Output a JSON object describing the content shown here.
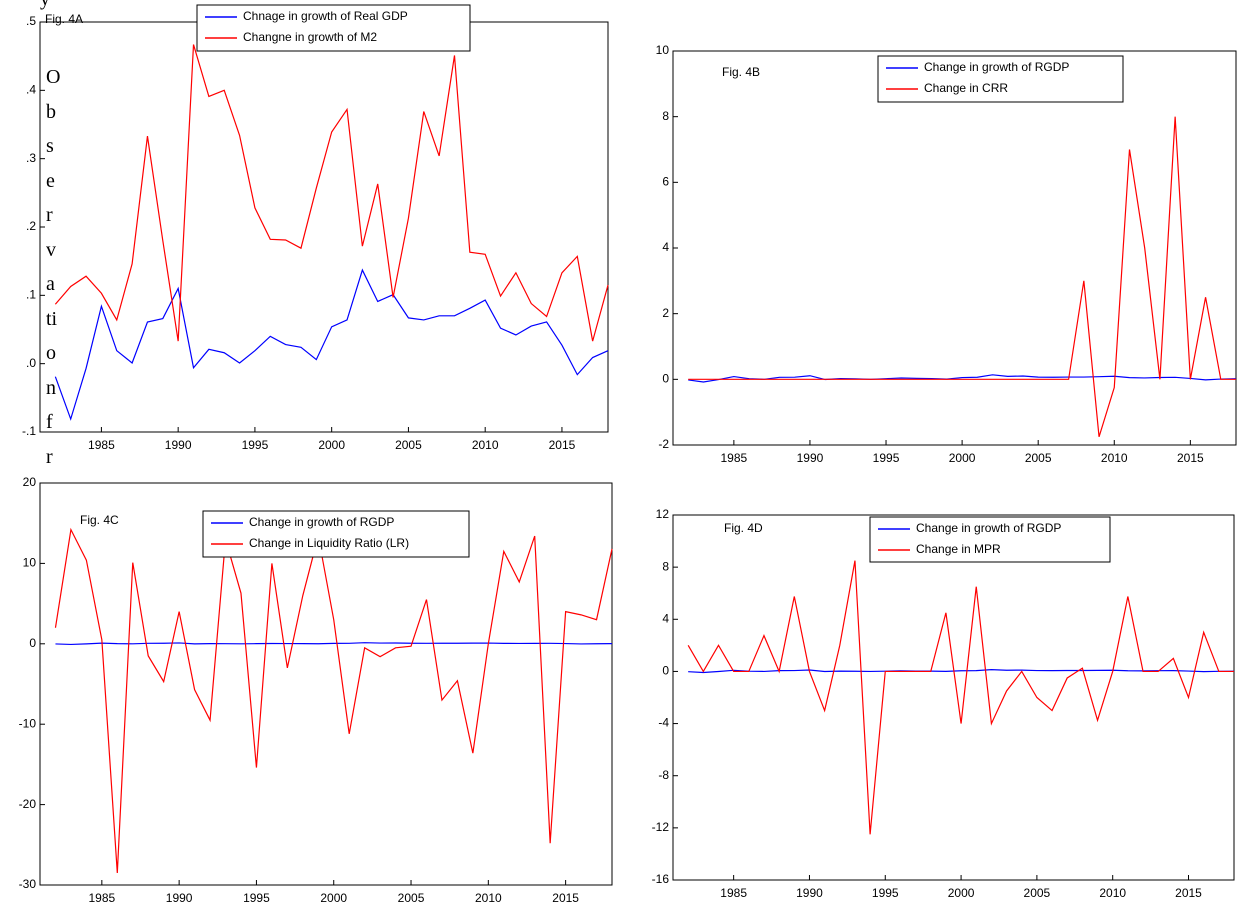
{
  "top_fragment": "y",
  "margin_text": "Observation fr",
  "chart_data": [
    {
      "type": "line",
      "annotation": "Fig. 4A",
      "x": [
        1982,
        1983,
        1984,
        1985,
        1986,
        1987,
        1988,
        1989,
        1990,
        1991,
        1992,
        1993,
        1994,
        1995,
        1996,
        1997,
        1998,
        1999,
        2000,
        2001,
        2002,
        2003,
        2004,
        2005,
        2006,
        2007,
        2008,
        2009,
        2010,
        2011,
        2012,
        2013,
        2014,
        2015,
        2016,
        2017,
        2018
      ],
      "series": [
        {
          "name": "Chnage in growth of Real GDP",
          "color": "#0000ff",
          "values": [
            -0.019,
            -0.081,
            -0.007,
            0.084,
            0.019,
            0.001,
            0.061,
            0.066,
            0.11,
            -0.006,
            0.021,
            0.016,
            0.001,
            0.019,
            0.04,
            0.028,
            0.024,
            0.006,
            0.054,
            0.064,
            0.137,
            0.091,
            0.101,
            0.067,
            0.064,
            0.07,
            0.07,
            0.081,
            0.093,
            0.052,
            0.042,
            0.055,
            0.061,
            0.027,
            -0.016,
            0.009,
            0.019
          ]
        },
        {
          "name": "Changne in growth of M2",
          "color": "#ff0000",
          "values": [
            0.087,
            0.113,
            0.128,
            0.103,
            0.064,
            0.146,
            0.333,
            0.18,
            0.033,
            0.467,
            0.391,
            0.4,
            0.334,
            0.228,
            0.182,
            0.181,
            0.169,
            0.257,
            0.339,
            0.372,
            0.172,
            0.263,
            0.097,
            0.213,
            0.369,
            0.304,
            0.451,
            0.163,
            0.16,
            0.099,
            0.133,
            0.088,
            0.069,
            0.133,
            0.157,
            0.033,
            0.115
          ]
        }
      ],
      "xlim": [
        1981,
        2018
      ],
      "ylim": [
        -0.1,
        0.5
      ],
      "xticks": [
        1985,
        1990,
        1995,
        2000,
        2005,
        2010,
        2015
      ],
      "yticks": [
        {
          "value": -0.1,
          "label": "-.1"
        },
        {
          "value": 0,
          "label": ".0"
        },
        {
          "value": 0.1,
          "label": ".1"
        },
        {
          "value": 0.2,
          "label": ".2"
        },
        {
          "value": 0.3,
          "label": ".3"
        },
        {
          "value": 0.4,
          "label": ".4"
        },
        {
          "value": 0.5,
          "label": ".5"
        }
      ]
    },
    {
      "type": "line",
      "annotation": "Fig. 4B",
      "x": [
        1982,
        1983,
        1984,
        1985,
        1986,
        1987,
        1988,
        1989,
        1990,
        1991,
        1992,
        1993,
        1994,
        1995,
        1996,
        1997,
        1998,
        1999,
        2000,
        2001,
        2002,
        2003,
        2004,
        2005,
        2006,
        2007,
        2008,
        2009,
        2010,
        2011,
        2012,
        2013,
        2014,
        2015,
        2016,
        2017,
        2018
      ],
      "series": [
        {
          "name": "Change in growth of RGDP",
          "color": "#0000ff",
          "values": [
            -0.019,
            -0.081,
            -0.007,
            0.084,
            0.019,
            0.001,
            0.061,
            0.066,
            0.11,
            -0.006,
            0.021,
            0.016,
            0.001,
            0.019,
            0.04,
            0.028,
            0.024,
            0.006,
            0.054,
            0.064,
            0.137,
            0.091,
            0.101,
            0.067,
            0.064,
            0.07,
            0.07,
            0.081,
            0.093,
            0.052,
            0.042,
            0.055,
            0.061,
            0.027,
            -0.016,
            0.009,
            0.019
          ]
        },
        {
          "name": "Change in CRR",
          "color": "#ff0000",
          "values": [
            0,
            0,
            0,
            0,
            0,
            0,
            0,
            0,
            0,
            0,
            0,
            0,
            0,
            0,
            0,
            0,
            0,
            0,
            0,
            0,
            0,
            0,
            0,
            0,
            0,
            0,
            3,
            -1.75,
            -0.25,
            7,
            4,
            0,
            8,
            0,
            2.5,
            0,
            0
          ]
        }
      ],
      "xlim": [
        1981,
        2018
      ],
      "ylim": [
        -2,
        10
      ],
      "xticks": [
        1985,
        1990,
        1995,
        2000,
        2005,
        2010,
        2015
      ],
      "yticks": [
        -2,
        0,
        2,
        4,
        6,
        8,
        10
      ]
    },
    {
      "type": "line",
      "annotation": "Fig. 4C",
      "x": [
        1982,
        1983,
        1984,
        1985,
        1986,
        1987,
        1988,
        1989,
        1990,
        1991,
        1992,
        1993,
        1994,
        1995,
        1996,
        1997,
        1998,
        1999,
        2000,
        2001,
        2002,
        2003,
        2004,
        2005,
        2006,
        2007,
        2008,
        2009,
        2010,
        2011,
        2012,
        2013,
        2014,
        2015,
        2016,
        2017,
        2018
      ],
      "series": [
        {
          "name": "Change in growth of RGDP",
          "color": "#0000ff",
          "values": [
            -0.019,
            -0.081,
            -0.007,
            0.084,
            0.019,
            0.001,
            0.061,
            0.066,
            0.11,
            -0.006,
            0.021,
            0.016,
            0.001,
            0.019,
            0.04,
            0.028,
            0.024,
            0.006,
            0.054,
            0.064,
            0.137,
            0.091,
            0.101,
            0.067,
            0.064,
            0.07,
            0.07,
            0.081,
            0.093,
            0.052,
            0.042,
            0.055,
            0.061,
            0.027,
            -0.016,
            0.009,
            0.019
          ]
        },
        {
          "name": "Change in Liquidity Ratio (LR)",
          "color": "#ff0000",
          "values": [
            2,
            14.2,
            10.4,
            0.5,
            -28.5,
            10.1,
            -1.5,
            -4.7,
            4,
            -5.7,
            -9.5,
            13,
            6.3,
            -15.4,
            10,
            -3,
            6,
            13.4,
            3,
            -11.2,
            -0.5,
            -1.6,
            -0.5,
            -0.3,
            5.5,
            -7,
            -4.6,
            -13.6,
            0,
            11.5,
            7.7,
            13.4,
            -24.8,
            4,
            3.6,
            3,
            11.8
          ]
        }
      ],
      "xlim": [
        1981,
        2018
      ],
      "ylim": [
        -30,
        20
      ],
      "xticks": [
        1985,
        1990,
        1995,
        2000,
        2005,
        2010,
        2015
      ],
      "yticks": [
        -30,
        -20,
        -10,
        0,
        10,
        20
      ]
    },
    {
      "type": "line",
      "annotation": "Fig. 4D",
      "x": [
        1982,
        1983,
        1984,
        1985,
        1986,
        1987,
        1988,
        1989,
        1990,
        1991,
        1992,
        1993,
        1994,
        1995,
        1996,
        1997,
        1998,
        1999,
        2000,
        2001,
        2002,
        2003,
        2004,
        2005,
        2006,
        2007,
        2008,
        2009,
        2010,
        2011,
        2012,
        2013,
        2014,
        2015,
        2016,
        2017,
        2018
      ],
      "series": [
        {
          "name": "Change in growth of RGDP",
          "color": "#0000ff",
          "values": [
            -0.019,
            -0.081,
            -0.007,
            0.084,
            0.019,
            0.001,
            0.061,
            0.066,
            0.11,
            -0.006,
            0.021,
            0.016,
            0.001,
            0.019,
            0.04,
            0.028,
            0.024,
            0.006,
            0.054,
            0.064,
            0.137,
            0.091,
            0.101,
            0.067,
            0.064,
            0.07,
            0.07,
            0.081,
            0.093,
            0.052,
            0.042,
            0.055,
            0.061,
            0.027,
            -0.016,
            0.009,
            0.019
          ]
        },
        {
          "name": "Change in MPR",
          "color": "#ff0000",
          "values": [
            2,
            0,
            2,
            0,
            0,
            2.75,
            0,
            5.75,
            0,
            -3,
            2,
            8.5,
            -12.5,
            0,
            0,
            0,
            0,
            4.5,
            -4,
            6.5,
            -4,
            -1.5,
            0,
            -2,
            -3,
            -0.5,
            0.25,
            -3.75,
            0,
            5.75,
            0,
            0,
            1,
            -2,
            3,
            0,
            0
          ]
        }
      ],
      "xlim": [
        1981,
        2018
      ],
      "ylim": [
        -16,
        12
      ],
      "xticks": [
        1985,
        1990,
        1995,
        2000,
        2005,
        2010,
        2015
      ],
      "yticks": [
        -16,
        -12,
        -8,
        -4,
        0,
        4,
        8,
        12
      ]
    }
  ]
}
